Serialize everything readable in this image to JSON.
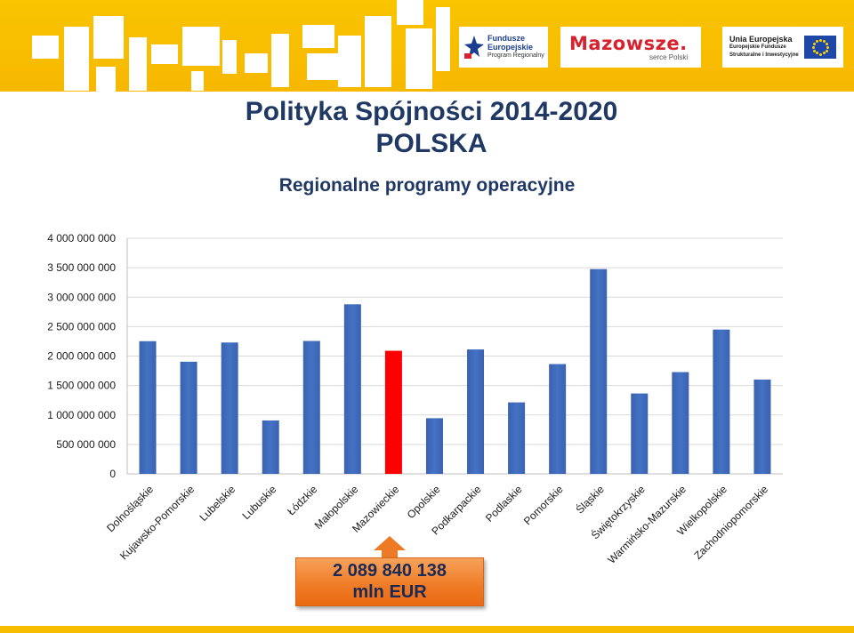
{
  "header": {
    "fe_logo": {
      "line1": "Fundusze",
      "line2": "Europejskie",
      "line3": "Program Regionalny"
    },
    "mazowsze_logo": {
      "title": "Mazowsze.",
      "sub": "serce Polski"
    },
    "ue_logo": {
      "line1": "Unia Europejska",
      "line2": "Europejskie Fundusze",
      "line3": "Strukturalne i Inwestycyjne"
    }
  },
  "titles": {
    "title1": "Polityka Spójności 2014-2020",
    "title2": "POLSKA",
    "title3": "Regionalne programy operacyjne"
  },
  "callout": {
    "line1": "2 089 840 138",
    "line2": "mln EUR"
  },
  "colors": {
    "bar": "#4472c4",
    "highlight": "#ff0000",
    "callout": "#ef7a25",
    "band": "#f9c400"
  },
  "chart_data": {
    "type": "bar",
    "categories": [
      "Dolnośląskie",
      "Kujawsko-Pomorskie",
      "Lubelskie",
      "Lubuskie",
      "Łódzkie",
      "Małopolskie",
      "Mazowieckie",
      "Opolskie",
      "Podkarpackie",
      "Podlaskie",
      "Pomorskie",
      "Śląskie",
      "Świętokrzyskie",
      "Warmińsko-Mazurskie",
      "Wielkopolskie",
      "Zachodniopomorskie"
    ],
    "values": [
      2252500000,
      1903800000,
      2230000000,
      906900000,
      2256300000,
      2878500000,
      2089840138,
      944900000,
      2112300000,
      1213600000,
      1864100000,
      3476700000,
      1364800000,
      1727800000,
      2450200000,
      1601200000
    ],
    "highlight_index": 6,
    "ylim": [
      0,
      4000000000
    ],
    "yticks": [
      0,
      500000000,
      1000000000,
      1500000000,
      2000000000,
      2500000000,
      3000000000,
      3500000000,
      4000000000
    ],
    "ytick_labels": [
      "0",
      "500 000 000",
      "1 000 000 000",
      "1 500 000 000",
      "2 000 000 000",
      "2 500 000 000",
      "3 000 000 000",
      "3 500 000 000",
      "4 000 000 000"
    ],
    "grid": true,
    "xlabel": "",
    "ylabel": ""
  }
}
